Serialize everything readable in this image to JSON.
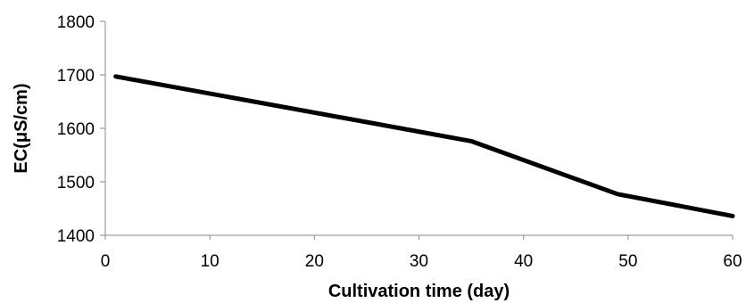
{
  "chart_data": {
    "type": "line",
    "title": "",
    "xlabel": "Cultivation time (day)",
    "ylabel": "EC(μS/cm)",
    "xlim": [
      0,
      60
    ],
    "ylim": [
      1400,
      1800
    ],
    "xticks": [
      0,
      10,
      20,
      30,
      40,
      50,
      60
    ],
    "yticks": [
      1400,
      1500,
      1600,
      1700,
      1800
    ],
    "grid": false,
    "legend": "none",
    "series": [
      {
        "color": "#000000",
        "x": [
          1,
          35,
          49,
          60
        ],
        "y": [
          1697,
          1576,
          1477,
          1436
        ]
      }
    ]
  }
}
